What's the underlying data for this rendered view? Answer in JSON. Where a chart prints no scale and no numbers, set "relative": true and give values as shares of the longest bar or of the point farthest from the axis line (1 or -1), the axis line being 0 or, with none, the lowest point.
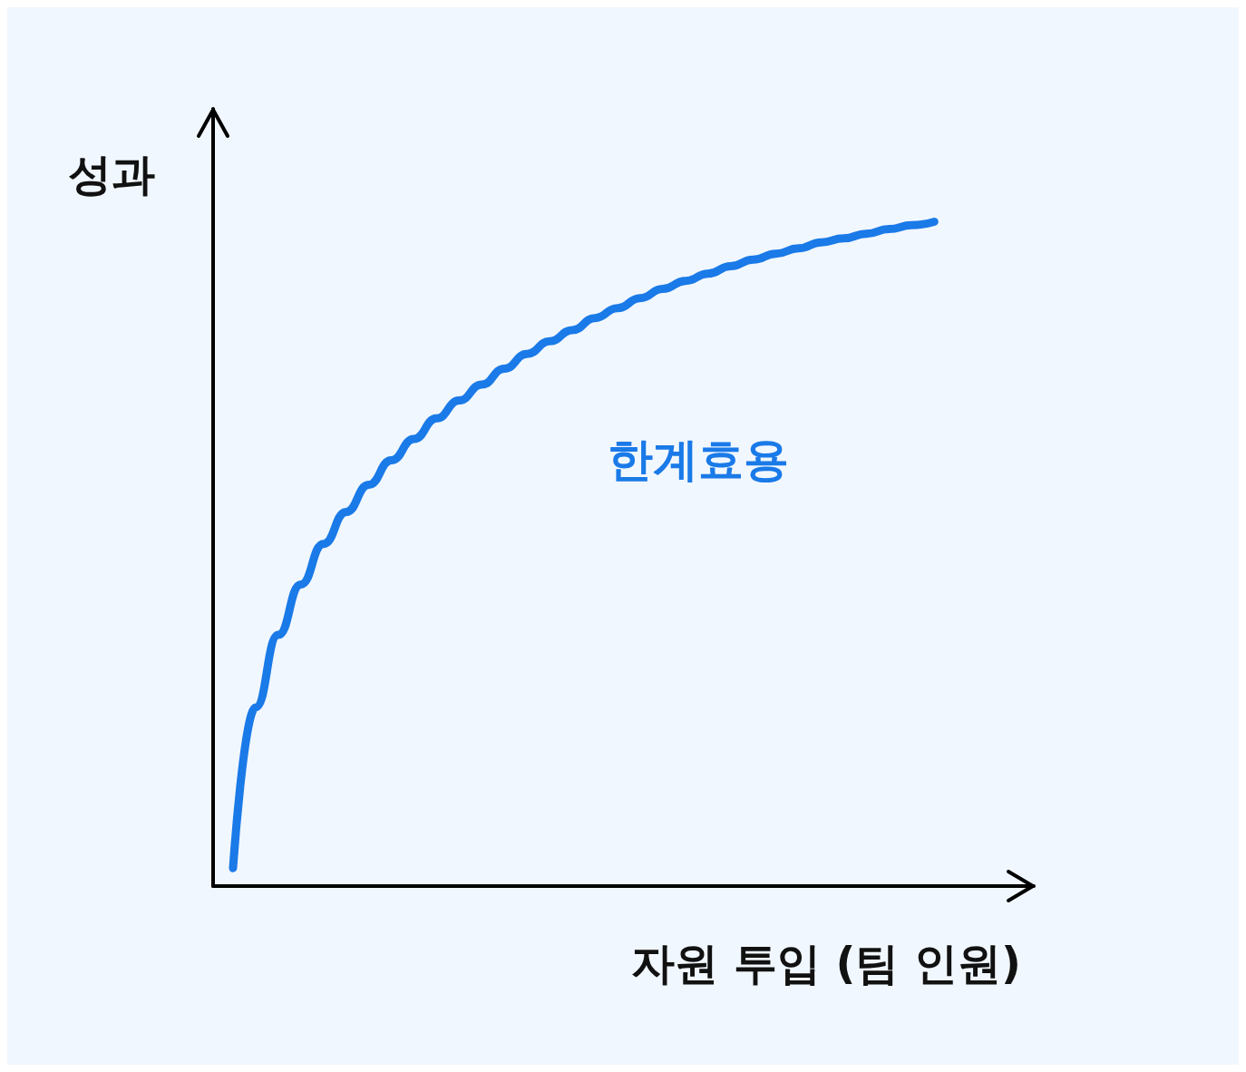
{
  "chart_data": {
    "type": "line",
    "relative": true,
    "xlabel": "자원 투입 (팀 인원)",
    "ylabel": "성과",
    "tick_labels": false,
    "grid": false,
    "legend": false,
    "line_style": "solid",
    "categories": [
      null,
      null,
      null,
      null,
      null,
      null,
      null,
      null,
      null,
      null,
      null,
      null,
      null,
      null,
      null,
      null,
      null,
      null,
      null,
      null,
      null,
      null,
      null,
      null,
      null,
      null,
      null,
      null,
      null,
      null,
      null,
      null
    ],
    "series": [
      {
        "name": "한계효용",
        "color": "#1a7ae8",
        "values": [
          0.027,
          0.269,
          0.378,
          0.454,
          0.515,
          0.563,
          0.604,
          0.641,
          0.673,
          0.704,
          0.731,
          0.755,
          0.779,
          0.801,
          0.82,
          0.837,
          0.855,
          0.87,
          0.885,
          0.899,
          0.911,
          0.922,
          0.933,
          0.943,
          0.952,
          0.96,
          0.969,
          0.975,
          0.982,
          0.989,
          0.995,
          1
        ]
      }
    ]
  }
}
